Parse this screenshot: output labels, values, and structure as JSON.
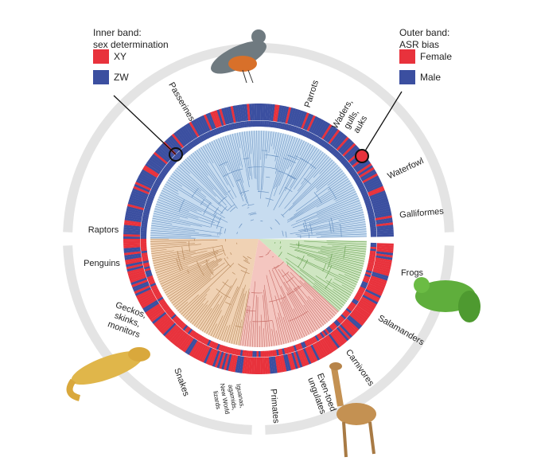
{
  "legend_inner": {
    "title_lines": [
      "Inner band:",
      "sex determination"
    ],
    "items": [
      {
        "label": "XY",
        "color": "#e8323c"
      },
      {
        "label": "ZW",
        "color": "#3b4fa0"
      }
    ]
  },
  "legend_outer": {
    "title_lines": [
      "Outer band:",
      "ASR bias"
    ],
    "items": [
      {
        "label": "Female",
        "color": "#e8323c"
      },
      {
        "label": "Male",
        "color": "#3b4fa0"
      }
    ]
  },
  "clades": [
    {
      "lines": [
        "Passerines"
      ]
    },
    {
      "lines": [
        "Parrots"
      ]
    },
    {
      "lines": [
        "Waders,",
        "gulls,",
        "auks"
      ]
    },
    {
      "lines": [
        "Waterfowl"
      ]
    },
    {
      "lines": [
        "Galliformes"
      ]
    },
    {
      "lines": [
        "Frogs"
      ]
    },
    {
      "lines": [
        "Salamanders"
      ]
    },
    {
      "lines": [
        "Carnivores"
      ]
    },
    {
      "lines": [
        "Even-toed",
        "ungulates"
      ]
    },
    {
      "lines": [
        "Primates"
      ]
    },
    {
      "lines": [
        "Iguanas,",
        "agamids,",
        "New World",
        "lizards"
      ]
    },
    {
      "lines": [
        "Snakes"
      ]
    },
    {
      "lines": [
        "Geckos,",
        "skinks,",
        "monitors"
      ]
    },
    {
      "lines": [
        "Penguins"
      ]
    },
    {
      "lines": [
        "Raptors"
      ]
    }
  ]
}
